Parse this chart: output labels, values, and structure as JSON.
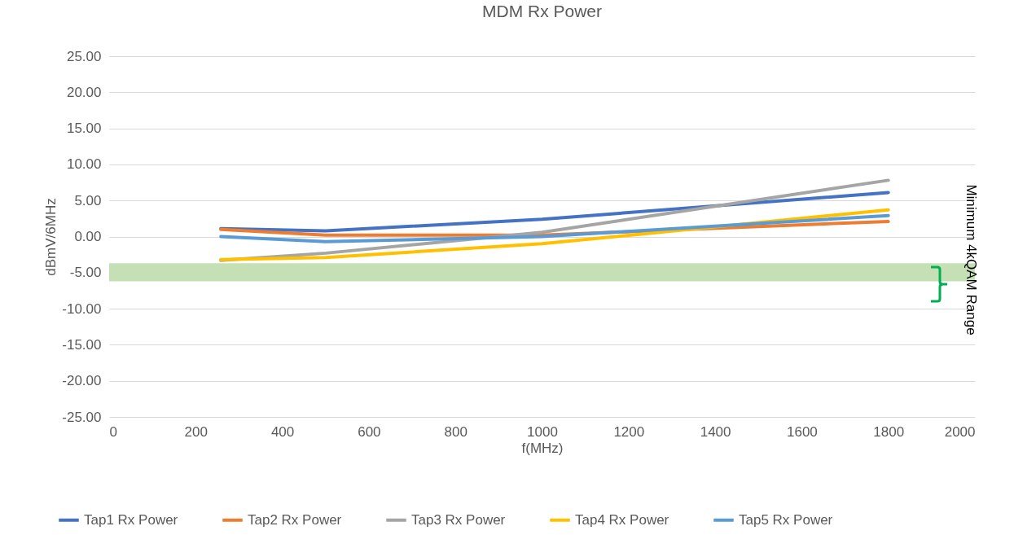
{
  "chart_data": {
    "type": "line",
    "title": "MDM Rx Power",
    "xlabel": "f(MHz)",
    "ylabel": "dBmV/6MHz",
    "x": [
      258,
      500,
      1000,
      1800
    ],
    "series": [
      {
        "name": "Tap1 Rx Power",
        "color": "#4472c4",
        "values": [
          1.1,
          0.8,
          2.4,
          6.1
        ]
      },
      {
        "name": "Tap2 Rx Power",
        "color": "#ed7d31",
        "values": [
          1.0,
          0.2,
          0.2,
          2.1
        ]
      },
      {
        "name": "Tap3 Rx Power",
        "color": "#a5a5a5",
        "values": [
          -3.3,
          -2.3,
          0.6,
          7.8
        ]
      },
      {
        "name": "Tap4 Rx Power",
        "color": "#ffc000",
        "values": [
          -3.2,
          -2.9,
          -1.0,
          3.7
        ]
      },
      {
        "name": "Tap5 Rx Power",
        "color": "#5b9bd5",
        "values": [
          0.0,
          -0.7,
          0.0,
          2.9
        ]
      }
    ],
    "xlim": [
      0,
      2000
    ],
    "xticks": [
      0,
      200,
      400,
      600,
      800,
      1000,
      1200,
      1400,
      1600,
      1800,
      2000
    ],
    "ylim": [
      -25,
      25
    ],
    "yticks": [
      {
        "value": -25,
        "label": "-25.00"
      },
      {
        "value": -20,
        "label": "-20.00"
      },
      {
        "value": -15,
        "label": "-15.00"
      },
      {
        "value": -10,
        "label": "-10.00"
      },
      {
        "value": -5,
        "label": "-5.00"
      },
      {
        "value": 0,
        "label": "0.00"
      },
      {
        "value": 5,
        "label": "5.00"
      },
      {
        "value": 10,
        "label": "10.00"
      },
      {
        "value": 15,
        "label": "15.00"
      },
      {
        "value": 20,
        "label": "20.00"
      },
      {
        "value": 25,
        "label": "25.00"
      }
    ],
    "bands": [
      {
        "axis": "y",
        "from": -3.7,
        "to": -6.2,
        "label": "Minimum 4kQAM Range",
        "color": "#c5e0b4"
      }
    ],
    "grid": "y",
    "legend": "bottom"
  }
}
